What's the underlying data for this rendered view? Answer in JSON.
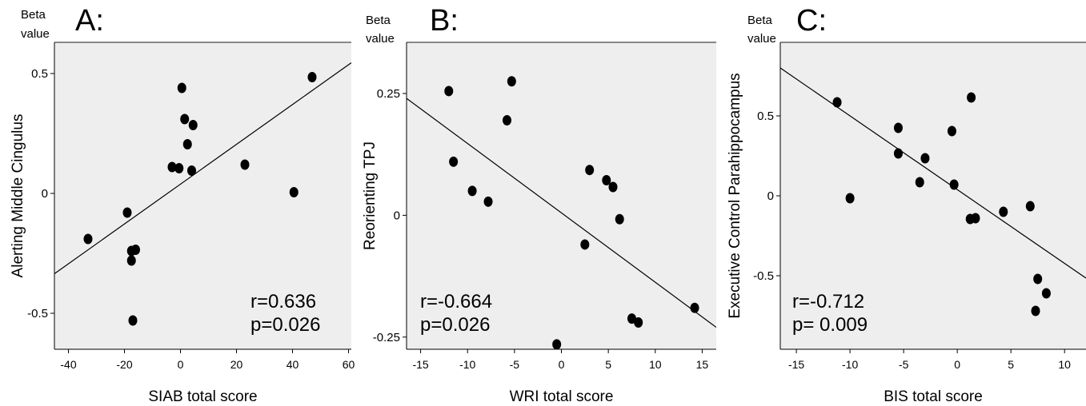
{
  "colors": {
    "plot_bg": "#eeeeee",
    "axis": "#000000",
    "top_rule": "#888888",
    "point": "#000000",
    "line": "#000000"
  },
  "chart_data": [
    {
      "type": "scatter",
      "panel_label": "A:",
      "beta_label": [
        "Beta",
        "value"
      ],
      "xlabel": "SIAB total score",
      "ylabel": "Alerting Middle Cingulus",
      "xlim": [
        -45,
        61
      ],
      "ylim": [
        -0.65,
        0.63
      ],
      "xticks": [
        {
          "v": -40,
          "label": "-40"
        },
        {
          "v": -20,
          "label": "-20"
        },
        {
          "v": 0,
          "label": "0"
        },
        {
          "v": 20,
          "label": "20"
        },
        {
          "v": 40,
          "label": "40"
        },
        {
          "v": 60,
          "label": "60"
        }
      ],
      "yticks": [
        {
          "v": 0.5,
          "label": "0.5"
        },
        {
          "v": 0,
          "label": "0"
        },
        {
          "v": -0.5,
          "label": "-0.5"
        }
      ],
      "points": [
        [
          -33,
          -0.19
        ],
        [
          -19,
          -0.08
        ],
        [
          -17.5,
          -0.24
        ],
        [
          -17.5,
          -0.28
        ],
        [
          -17,
          -0.53
        ],
        [
          -16,
          -0.235
        ],
        [
          -3,
          0.11
        ],
        [
          -0.5,
          0.105
        ],
        [
          0.5,
          0.44
        ],
        [
          1.5,
          0.31
        ],
        [
          2.5,
          0.205
        ],
        [
          4,
          0.095
        ],
        [
          4.5,
          0.285
        ],
        [
          23,
          0.12
        ],
        [
          40.5,
          0.005
        ],
        [
          47,
          0.485
        ]
      ],
      "fit_line": [
        [
          -45,
          -0.335
        ],
        [
          61,
          0.545
        ]
      ],
      "stats": [
        "r=0.636",
        "p=0.026"
      ]
    },
    {
      "type": "scatter",
      "panel_label": "B:",
      "beta_label": [
        "Beta",
        "value"
      ],
      "xlabel": "WRI total score",
      "ylabel": "Reorienting TPJ",
      "xlim": [
        -16.5,
        16.5
      ],
      "ylim": [
        -0.275,
        0.355
      ],
      "xticks": [
        {
          "v": -15,
          "label": "-15"
        },
        {
          "v": -10,
          "label": "-10"
        },
        {
          "v": -5,
          "label": "-5"
        },
        {
          "v": 0,
          "label": "0"
        },
        {
          "v": 5,
          "label": "5"
        },
        {
          "v": 10,
          "label": "10"
        },
        {
          "v": 15,
          "label": "15"
        }
      ],
      "yticks": [
        {
          "v": 0.25,
          "label": "0.25"
        },
        {
          "v": 0,
          "label": "0"
        },
        {
          "v": -0.25,
          "label": "-0.25"
        }
      ],
      "points": [
        [
          -12,
          0.255
        ],
        [
          -11.5,
          0.11
        ],
        [
          -9.5,
          0.05
        ],
        [
          -7.8,
          0.028
        ],
        [
          -5.8,
          0.195
        ],
        [
          -5.3,
          0.275
        ],
        [
          -0.5,
          -0.265
        ],
        [
          2.5,
          -0.06
        ],
        [
          3,
          0.093
        ],
        [
          4.8,
          0.072
        ],
        [
          5.5,
          0.058
        ],
        [
          6.2,
          -0.008
        ],
        [
          7.5,
          -0.212
        ],
        [
          8.2,
          -0.22
        ],
        [
          14.2,
          -0.19
        ]
      ],
      "fit_line": [
        [
          -16.5,
          0.24
        ],
        [
          16.5,
          -0.23
        ]
      ],
      "stats": [
        "r=-0.664",
        "p=0.026"
      ]
    },
    {
      "type": "scatter",
      "panel_label": "C:",
      "beta_label": [
        "Beta",
        "value"
      ],
      "xlabel": "BIS total score",
      "ylabel": "Executive Control Parahippocampus",
      "xlim": [
        -16.5,
        12
      ],
      "ylim": [
        -0.96,
        0.96
      ],
      "xticks": [
        {
          "v": -15,
          "label": "-15"
        },
        {
          "v": -10,
          "label": "-10"
        },
        {
          "v": -5,
          "label": "-5"
        },
        {
          "v": 0,
          "label": "0"
        },
        {
          "v": 5,
          "label": "5"
        },
        {
          "v": 10,
          "label": "10"
        }
      ],
      "yticks": [
        {
          "v": 0.5,
          "label": "0.5"
        },
        {
          "v": 0,
          "label": "0"
        },
        {
          "v": -0.5,
          "label": "-0.5"
        }
      ],
      "points": [
        [
          -11.2,
          0.585
        ],
        [
          -10,
          -0.015
        ],
        [
          -5.5,
          0.425
        ],
        [
          -5.5,
          0.265
        ],
        [
          -3.5,
          0.085
        ],
        [
          -3,
          0.235
        ],
        [
          -0.5,
          0.405
        ],
        [
          -0.3,
          0.07
        ],
        [
          1.2,
          -0.145
        ],
        [
          1.3,
          0.615
        ],
        [
          1.7,
          -0.14
        ],
        [
          4.3,
          -0.1
        ],
        [
          6.8,
          -0.065
        ],
        [
          7.3,
          -0.72
        ],
        [
          7.5,
          -0.52
        ],
        [
          8.3,
          -0.61
        ]
      ],
      "fit_line": [
        [
          -16.5,
          0.8
        ],
        [
          12,
          -0.515
        ]
      ],
      "stats": [
        "r=-0.712",
        "p= 0.009"
      ]
    }
  ]
}
